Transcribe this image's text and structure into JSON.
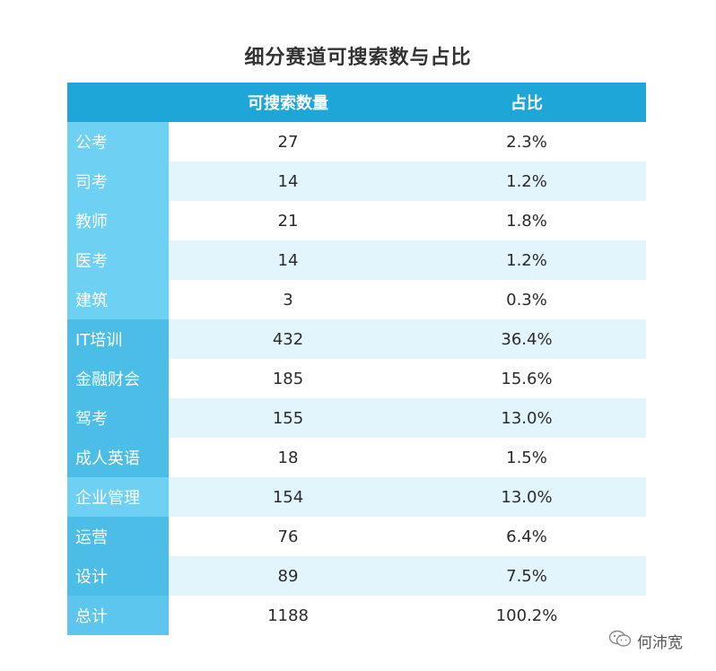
{
  "title": "细分赛道可搜索数与占比",
  "header": {
    "corner": "",
    "col1": "可搜索数量",
    "col2": "占比"
  },
  "rows": [
    {
      "category": "公考",
      "count": "27",
      "share": "2.3%",
      "group": "light"
    },
    {
      "category": "司考",
      "count": "14",
      "share": "1.2%",
      "group": "light"
    },
    {
      "category": "教师",
      "count": "21",
      "share": "1.8%",
      "group": "light"
    },
    {
      "category": "医考",
      "count": "14",
      "share": "1.2%",
      "group": "light"
    },
    {
      "category": "建筑",
      "count": "3",
      "share": "0.3%",
      "group": "light"
    },
    {
      "category": "IT培训",
      "count": "432",
      "share": "36.4%",
      "group": "mid"
    },
    {
      "category": "金融财会",
      "count": "185",
      "share": "15.6%",
      "group": "mid"
    },
    {
      "category": "驾考",
      "count": "155",
      "share": "13.0%",
      "group": "mid"
    },
    {
      "category": "成人英语",
      "count": "18",
      "share": "1.5%",
      "group": "mid"
    },
    {
      "category": "企业管理",
      "count": "154",
      "share": "13.0%",
      "group": "light"
    },
    {
      "category": "运营",
      "count": "76",
      "share": "6.4%",
      "group": "mid"
    },
    {
      "category": "设计",
      "count": "89",
      "share": "7.5%",
      "group": "mid"
    },
    {
      "category": "总计",
      "count": "1188",
      "share": "100.2%",
      "group": "mid2"
    }
  ],
  "colors": {
    "header": "#1ea6d8",
    "category_light": "#6ed0f3",
    "category_mid": "#4bbde7",
    "row_alt": "#e3f5fc"
  },
  "watermark": {
    "text": "何沛宽",
    "icon": "wechat-icon"
  }
}
